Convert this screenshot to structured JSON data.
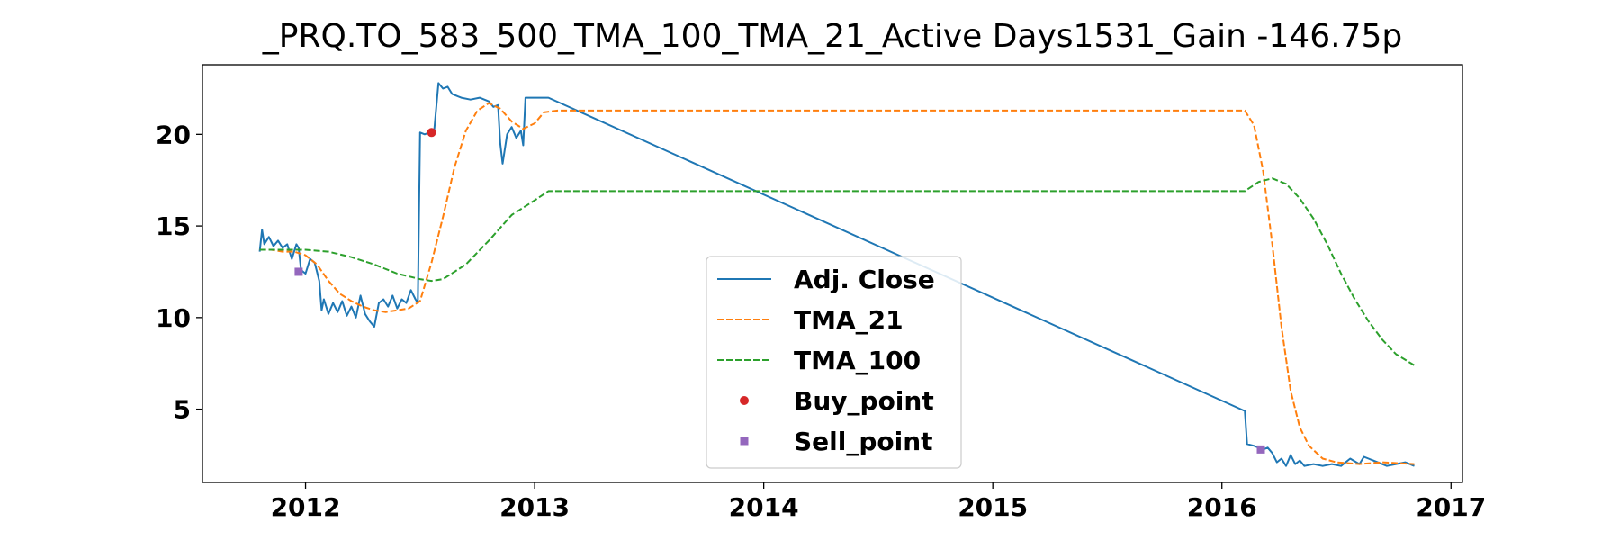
{
  "chart_data": {
    "type": "line",
    "title": "_PRQ.TO_583_500_TMA_100_TMA_21_Active Days1531_Gain -146.75p",
    "xlabel": "",
    "ylabel": "",
    "xlim": [
      2011.55,
      2017.05
    ],
    "ylim": [
      1.0,
      23.8
    ],
    "x_ticks": [
      2012,
      2013,
      2014,
      2015,
      2016,
      2017
    ],
    "x_tick_labels": [
      "2012",
      "2013",
      "2014",
      "2015",
      "2016",
      "2017"
    ],
    "y_ticks": [
      5,
      10,
      15,
      20
    ],
    "y_tick_labels": [
      "5",
      "10",
      "15",
      "20"
    ],
    "grid": false,
    "legend_position": "bottom-center",
    "series": [
      {
        "name": "Adj. Close",
        "style": "solid",
        "color": "#1f77b4",
        "points": [
          [
            2011.8,
            13.6
          ],
          [
            2011.81,
            14.8
          ],
          [
            2011.82,
            14.0
          ],
          [
            2011.84,
            14.4
          ],
          [
            2011.86,
            13.9
          ],
          [
            2011.88,
            14.2
          ],
          [
            2011.9,
            13.8
          ],
          [
            2011.92,
            14.0
          ],
          [
            2011.94,
            13.2
          ],
          [
            2011.96,
            14.0
          ],
          [
            2011.97,
            13.8
          ],
          [
            2011.98,
            12.6
          ],
          [
            2012.0,
            12.4
          ],
          [
            2012.02,
            13.2
          ],
          [
            2012.04,
            13.0
          ],
          [
            2012.06,
            12.0
          ],
          [
            2012.07,
            10.4
          ],
          [
            2012.08,
            11.0
          ],
          [
            2012.1,
            10.2
          ],
          [
            2012.12,
            10.8
          ],
          [
            2012.14,
            10.3
          ],
          [
            2012.16,
            10.9
          ],
          [
            2012.18,
            10.1
          ],
          [
            2012.2,
            10.6
          ],
          [
            2012.22,
            10.0
          ],
          [
            2012.24,
            11.2
          ],
          [
            2012.26,
            10.2
          ],
          [
            2012.28,
            9.8
          ],
          [
            2012.3,
            9.5
          ],
          [
            2012.32,
            10.8
          ],
          [
            2012.34,
            11.0
          ],
          [
            2012.36,
            10.6
          ],
          [
            2012.38,
            11.2
          ],
          [
            2012.4,
            10.5
          ],
          [
            2012.42,
            11.0
          ],
          [
            2012.44,
            10.8
          ],
          [
            2012.46,
            11.5
          ],
          [
            2012.48,
            11.0
          ],
          [
            2012.49,
            10.8
          ],
          [
            2012.5,
            20.1
          ],
          [
            2012.52,
            20.0
          ],
          [
            2012.54,
            20.1
          ],
          [
            2012.56,
            20.0
          ],
          [
            2012.58,
            22.8
          ],
          [
            2012.6,
            22.5
          ],
          [
            2012.62,
            22.6
          ],
          [
            2012.64,
            22.2
          ],
          [
            2012.66,
            22.1
          ],
          [
            2012.68,
            22.0
          ],
          [
            2012.72,
            21.9
          ],
          [
            2012.76,
            22.0
          ],
          [
            2012.8,
            21.8
          ],
          [
            2012.82,
            21.5
          ],
          [
            2012.84,
            21.6
          ],
          [
            2012.85,
            19.5
          ],
          [
            2012.86,
            18.4
          ],
          [
            2012.88,
            20.0
          ],
          [
            2012.9,
            20.4
          ],
          [
            2012.92,
            19.8
          ],
          [
            2012.94,
            20.2
          ],
          [
            2012.95,
            19.4
          ],
          [
            2012.96,
            22.0
          ],
          [
            2013.0,
            22.0
          ],
          [
            2013.06,
            22.0
          ],
          [
            2016.1,
            4.9
          ],
          [
            2016.11,
            3.1
          ],
          [
            2016.14,
            3.0
          ],
          [
            2016.18,
            2.8
          ],
          [
            2016.2,
            2.9
          ],
          [
            2016.22,
            2.6
          ],
          [
            2016.24,
            2.1
          ],
          [
            2016.26,
            2.3
          ],
          [
            2016.28,
            1.9
          ],
          [
            2016.3,
            2.5
          ],
          [
            2016.32,
            2.0
          ],
          [
            2016.34,
            2.2
          ],
          [
            2016.36,
            1.9
          ],
          [
            2016.4,
            2.0
          ],
          [
            2016.44,
            1.9
          ],
          [
            2016.48,
            2.0
          ],
          [
            2016.52,
            1.9
          ],
          [
            2016.56,
            2.3
          ],
          [
            2016.6,
            2.0
          ],
          [
            2016.62,
            2.4
          ],
          [
            2016.64,
            2.3
          ],
          [
            2016.68,
            2.1
          ],
          [
            2016.72,
            1.9
          ],
          [
            2016.76,
            2.0
          ],
          [
            2016.8,
            2.1
          ],
          [
            2016.84,
            1.9
          ]
        ]
      },
      {
        "name": "TMA_21",
        "style": "dashed",
        "color": "#ff7f0e",
        "points": [
          [
            2011.8,
            13.7
          ],
          [
            2011.85,
            13.7
          ],
          [
            2011.9,
            13.6
          ],
          [
            2011.95,
            13.6
          ],
          [
            2012.0,
            13.4
          ],
          [
            2012.05,
            12.9
          ],
          [
            2012.1,
            12.0
          ],
          [
            2012.15,
            11.3
          ],
          [
            2012.2,
            10.9
          ],
          [
            2012.25,
            10.6
          ],
          [
            2012.3,
            10.4
          ],
          [
            2012.35,
            10.3
          ],
          [
            2012.4,
            10.4
          ],
          [
            2012.45,
            10.5
          ],
          [
            2012.5,
            10.9
          ],
          [
            2012.55,
            13.0
          ],
          [
            2012.6,
            15.5
          ],
          [
            2012.65,
            18.2
          ],
          [
            2012.7,
            20.2
          ],
          [
            2012.75,
            21.3
          ],
          [
            2012.8,
            21.7
          ],
          [
            2012.85,
            21.4
          ],
          [
            2012.9,
            20.7
          ],
          [
            2012.95,
            20.3
          ],
          [
            2013.0,
            20.6
          ],
          [
            2013.04,
            21.2
          ],
          [
            2013.1,
            21.3
          ],
          [
            2014.0,
            21.3
          ],
          [
            2015.0,
            21.3
          ],
          [
            2016.0,
            21.3
          ],
          [
            2016.1,
            21.3
          ],
          [
            2016.14,
            20.5
          ],
          [
            2016.18,
            18.0
          ],
          [
            2016.22,
            14.0
          ],
          [
            2016.26,
            9.5
          ],
          [
            2016.3,
            6.0
          ],
          [
            2016.34,
            4.0
          ],
          [
            2016.38,
            3.0
          ],
          [
            2016.44,
            2.3
          ],
          [
            2016.5,
            2.1
          ],
          [
            2016.6,
            2.0
          ],
          [
            2016.7,
            2.1
          ],
          [
            2016.84,
            2.0
          ]
        ]
      },
      {
        "name": "TMA_100",
        "style": "dashed",
        "color": "#2ca02c",
        "points": [
          [
            2011.8,
            13.7
          ],
          [
            2011.9,
            13.7
          ],
          [
            2012.0,
            13.7
          ],
          [
            2012.1,
            13.6
          ],
          [
            2012.2,
            13.3
          ],
          [
            2012.3,
            12.9
          ],
          [
            2012.4,
            12.4
          ],
          [
            2012.5,
            12.1
          ],
          [
            2012.55,
            12.0
          ],
          [
            2012.6,
            12.1
          ],
          [
            2012.7,
            12.9
          ],
          [
            2012.8,
            14.2
          ],
          [
            2012.9,
            15.6
          ],
          [
            2013.0,
            16.4
          ],
          [
            2013.06,
            16.9
          ],
          [
            2014.0,
            16.9
          ],
          [
            2015.0,
            16.9
          ],
          [
            2016.0,
            16.9
          ],
          [
            2016.1,
            16.9
          ],
          [
            2016.16,
            17.4
          ],
          [
            2016.22,
            17.6
          ],
          [
            2016.28,
            17.3
          ],
          [
            2016.34,
            16.5
          ],
          [
            2016.4,
            15.4
          ],
          [
            2016.46,
            14.0
          ],
          [
            2016.52,
            12.4
          ],
          [
            2016.58,
            11.0
          ],
          [
            2016.64,
            9.8
          ],
          [
            2016.7,
            8.8
          ],
          [
            2016.76,
            8.0
          ],
          [
            2016.84,
            7.4
          ]
        ]
      },
      {
        "name": "Buy_point",
        "style": "marker-circle",
        "color": "#d62728",
        "points": [
          [
            2012.55,
            20.1
          ]
        ]
      },
      {
        "name": "Sell_point",
        "style": "marker-square",
        "color": "#9467bd",
        "points": [
          [
            2011.97,
            12.5
          ],
          [
            2016.17,
            2.8
          ]
        ]
      }
    ]
  }
}
